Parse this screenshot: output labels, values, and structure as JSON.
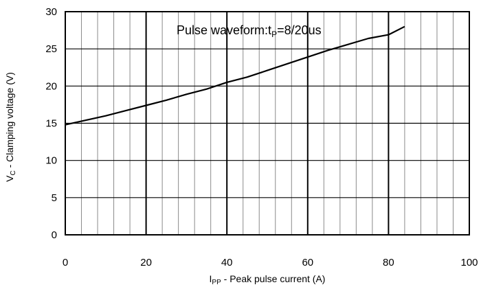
{
  "chart_data": {
    "type": "line",
    "title": "",
    "xlabel": {
      "main": "I",
      "sub": "PP",
      "rest": " - Peak pulse current (A)"
    },
    "ylabel": {
      "main": "V",
      "sub": "C",
      "rest": " - Clamping voltage (V)"
    },
    "annotation": {
      "main": "Pulse waveform:t",
      "sub": "P",
      "rest": "=8/20us"
    },
    "xlim": [
      0,
      100
    ],
    "ylim": [
      0,
      30
    ],
    "xticks": [
      "0",
      "20",
      "40",
      "60",
      "80",
      "100"
    ],
    "yticks": [
      "0",
      "5",
      "10",
      "15",
      "20",
      "25",
      "30"
    ],
    "grid": true,
    "series": [
      {
        "x": [
          0,
          5,
          10,
          15,
          20,
          25,
          30,
          35,
          40,
          45,
          50,
          55,
          60,
          65,
          70,
          75,
          80,
          84
        ],
        "y": [
          14.8,
          15.4,
          16.0,
          16.7,
          17.4,
          18.1,
          18.9,
          19.6,
          20.5,
          21.2,
          22.1,
          23.0,
          23.9,
          24.8,
          25.6,
          26.4,
          26.9,
          28.0
        ]
      }
    ],
    "line_color": "#000000"
  }
}
